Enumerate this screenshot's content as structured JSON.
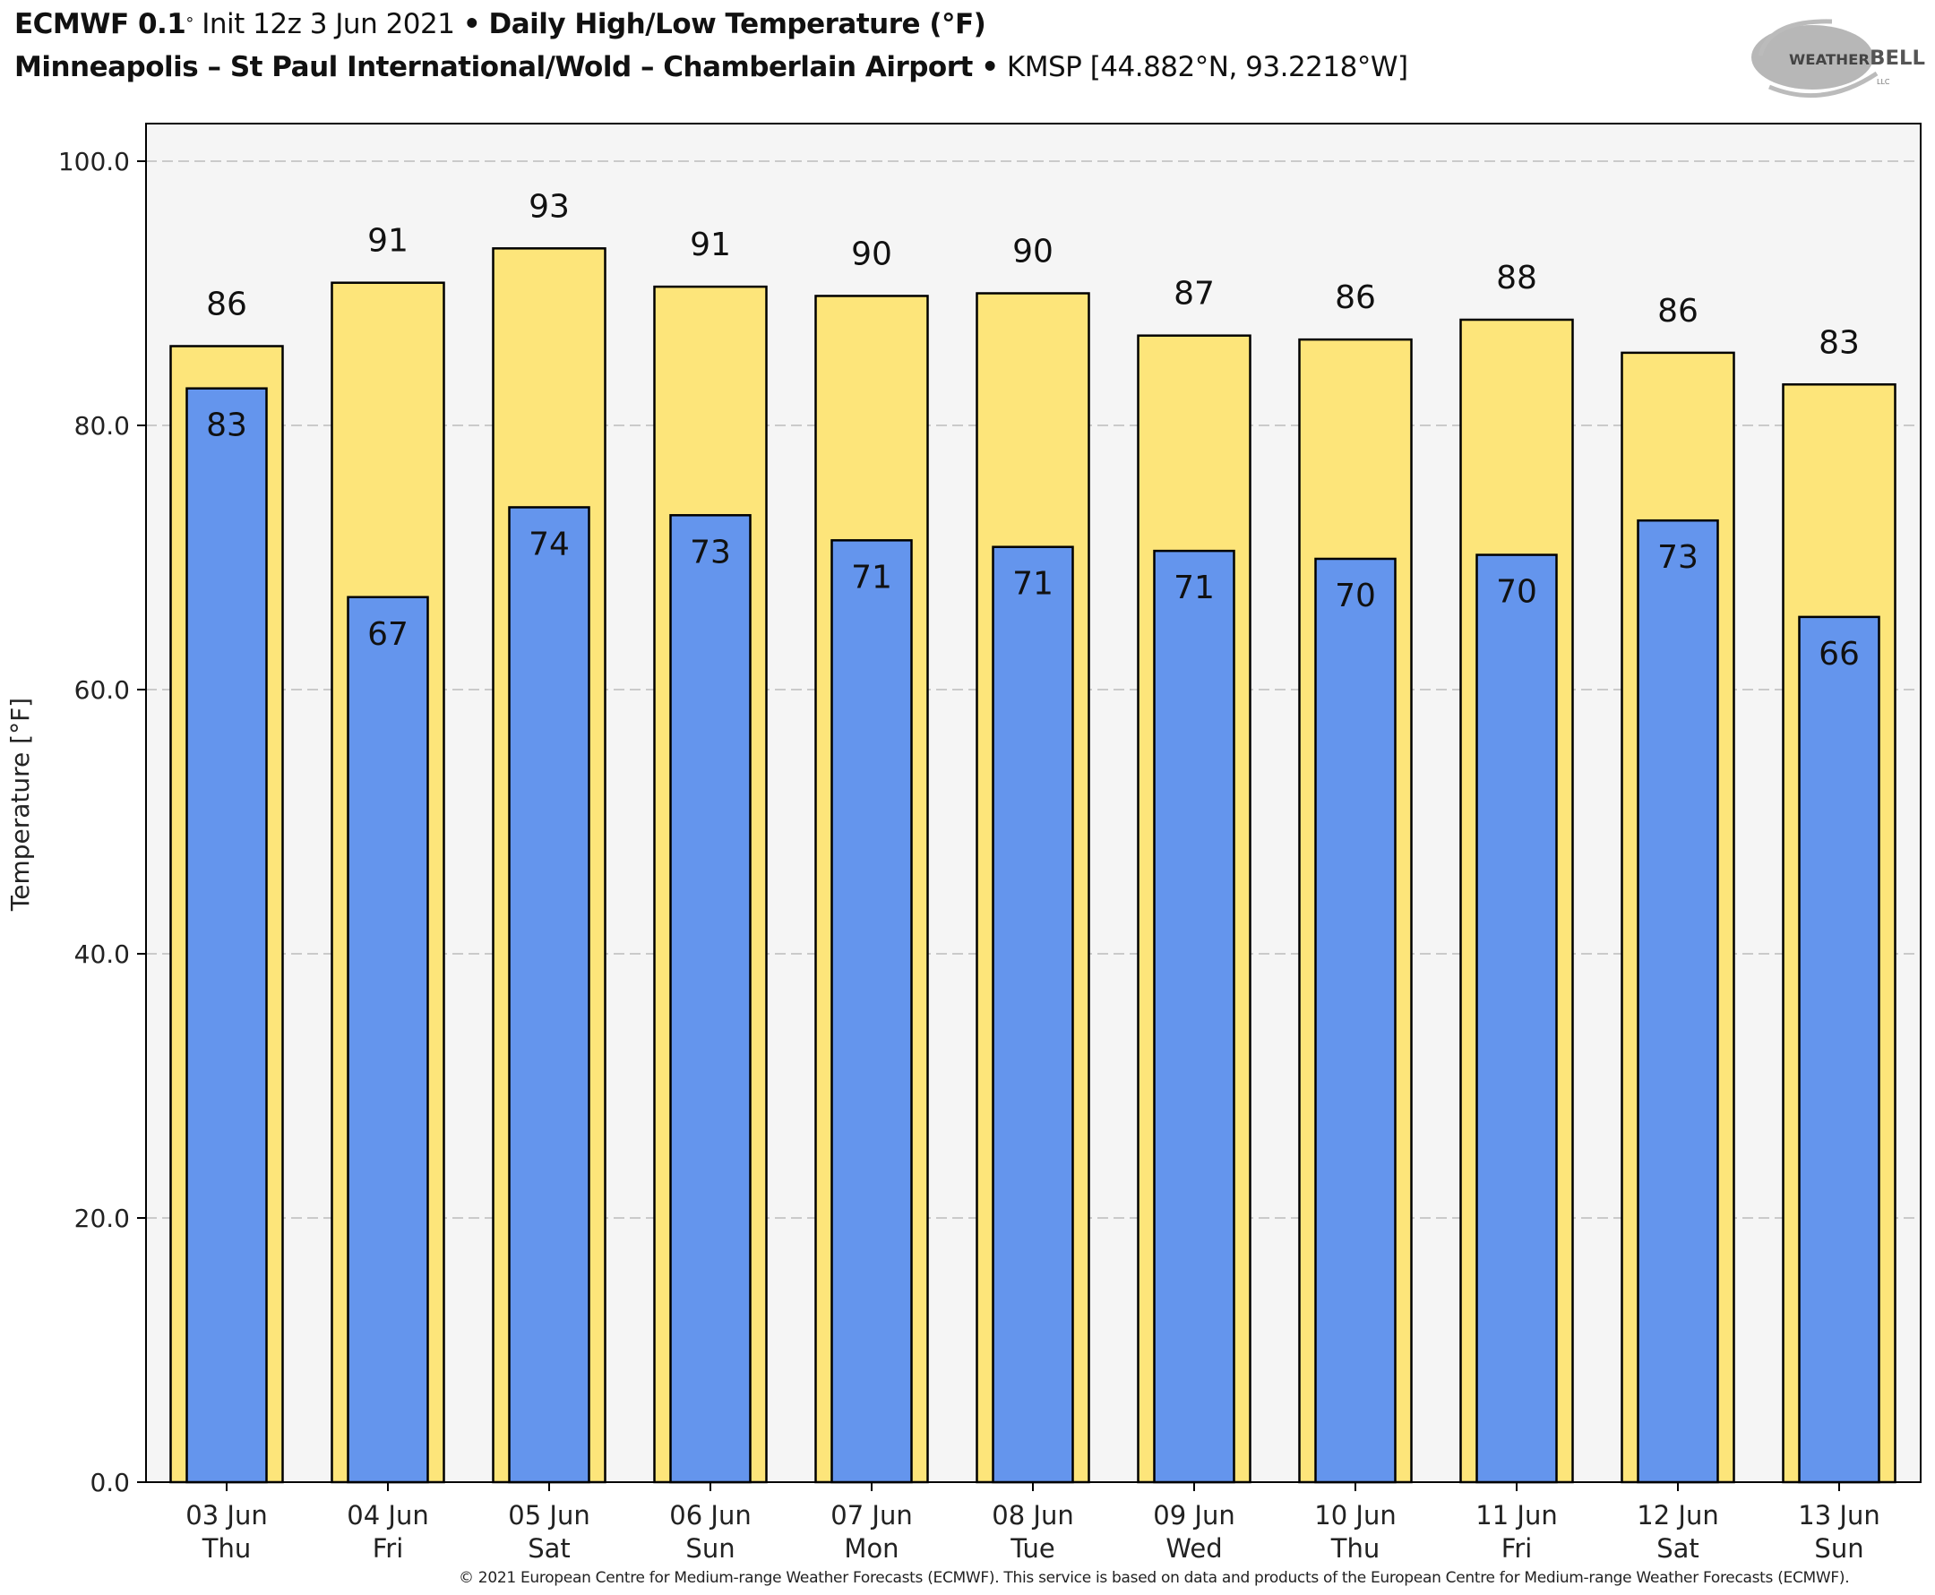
{
  "header": {
    "model": "ECMWF 0.1",
    "deg": "°",
    "init": "Init 12z 3 Jun 2021",
    "sep": "•",
    "product": "Daily High/Low Temperature (°F)",
    "station": "Minneapolis – St Paul International/Wold – Chamberlain Airport",
    "location": "KMSP [44.882°N, 93.2218°W]"
  },
  "logo": {
    "text": "WeatherBELL",
    "subtext": "Analytics LLC"
  },
  "footer": "© 2021 European Centre for Medium-range Weather Forecasts (ECMWF). This service is based on data and products of the European Centre for Medium-range Weather Forecasts (ECMWF).",
  "colors": {
    "high": "#FDE57A",
    "low": "#6495ED",
    "plot_bg": "#F5F5F5",
    "grid": "#BBBBBB"
  },
  "chart_data": {
    "type": "bar",
    "title": "Daily High/Low Temperature (°F)",
    "xlabel": "",
    "ylabel": "Temperature [°F]",
    "ylim": [
      0,
      100
    ],
    "yticks": [
      "0.0",
      "20.0",
      "40.0",
      "60.0",
      "80.0",
      "100.0"
    ],
    "ytick_values": [
      0,
      20,
      40,
      60,
      80,
      100
    ],
    "grid": true,
    "categories": [
      {
        "date": "03 Jun",
        "day": "Thu"
      },
      {
        "date": "04 Jun",
        "day": "Fri"
      },
      {
        "date": "05 Jun",
        "day": "Sat"
      },
      {
        "date": "06 Jun",
        "day": "Sun"
      },
      {
        "date": "07 Jun",
        "day": "Mon"
      },
      {
        "date": "08 Jun",
        "day": "Tue"
      },
      {
        "date": "09 Jun",
        "day": "Wed"
      },
      {
        "date": "10 Jun",
        "day": "Thu"
      },
      {
        "date": "11 Jun",
        "day": "Fri"
      },
      {
        "date": "12 Jun",
        "day": "Sat"
      },
      {
        "date": "13 Jun",
        "day": "Sun"
      }
    ],
    "series": [
      {
        "name": "High",
        "values": [
          86.0,
          90.8,
          93.4,
          90.5,
          89.8,
          90.0,
          86.8,
          86.5,
          88.0,
          85.5,
          83.1
        ],
        "labels": [
          "86",
          "91",
          "93",
          "91",
          "90",
          "90",
          "87",
          "86",
          "88",
          "86",
          "83"
        ]
      },
      {
        "name": "Low",
        "values": [
          82.8,
          67.0,
          73.8,
          73.2,
          71.3,
          70.8,
          70.5,
          69.9,
          70.2,
          72.8,
          65.5
        ],
        "labels": [
          "83",
          "67",
          "74",
          "73",
          "71",
          "71",
          "71",
          "70",
          "70",
          "73",
          "66"
        ]
      }
    ]
  }
}
